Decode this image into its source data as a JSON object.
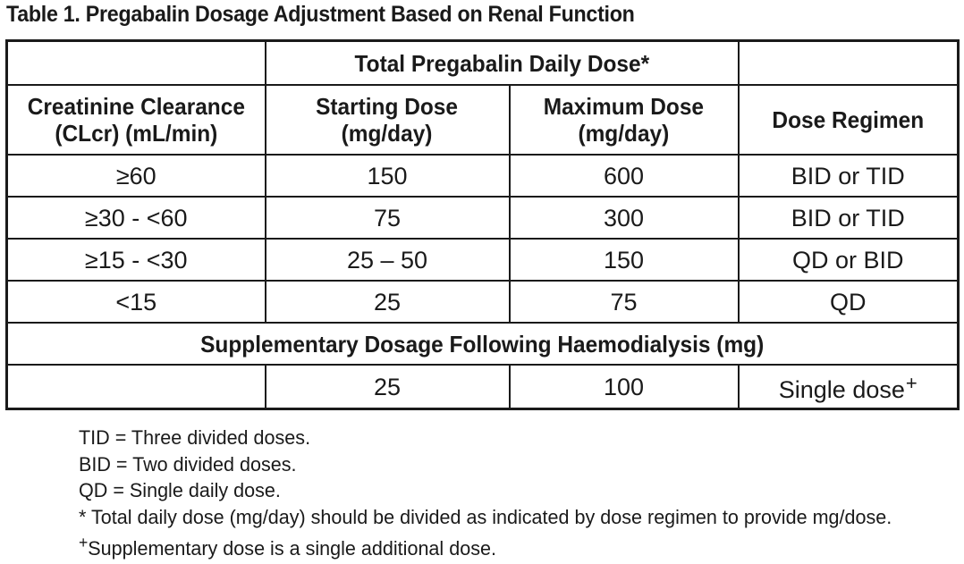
{
  "title": "Table 1. Pregabalin Dosage Adjustment Based on Renal Function",
  "table": {
    "group_header": "Total Pregabalin Daily Dose*",
    "columns": [
      "Creatinine Clearance (CLcr) (mL/min)",
      "Starting Dose (mg/day)",
      "Maximum Dose (mg/day)",
      "Dose Regimen"
    ],
    "column_lines": [
      [
        "Creatinine Clearance",
        "(CLcr) (mL/min)"
      ],
      [
        "Starting Dose",
        "(mg/day)"
      ],
      [
        "Maximum Dose",
        "(mg/day)"
      ],
      [
        "Dose Regimen"
      ]
    ],
    "rows": [
      [
        "≥60",
        "150",
        "600",
        "BID or TID"
      ],
      [
        "≥30 - <60",
        "75",
        "300",
        "BID or TID"
      ],
      [
        "≥15 - <30",
        "25 – 50",
        "150",
        "QD or BID"
      ],
      [
        "<15",
        "25",
        "75",
        "QD"
      ]
    ],
    "supplementary_header": "Supplementary Dosage Following Haemodialysis (mg)",
    "supplementary_row": [
      "",
      "25",
      "100",
      "Single dose"
    ],
    "supplementary_marker": "+"
  },
  "footnotes": {
    "tid": "TID = Three divided doses.",
    "bid": "BID = Two divided doses.",
    "qd": "QD = Single daily dose.",
    "asterisk": "* Total daily dose (mg/day) should be divided as indicated by dose regimen to provide mg/dose.",
    "plus_marker": "+",
    "plus": "Supplementary dose is a single additional dose."
  }
}
